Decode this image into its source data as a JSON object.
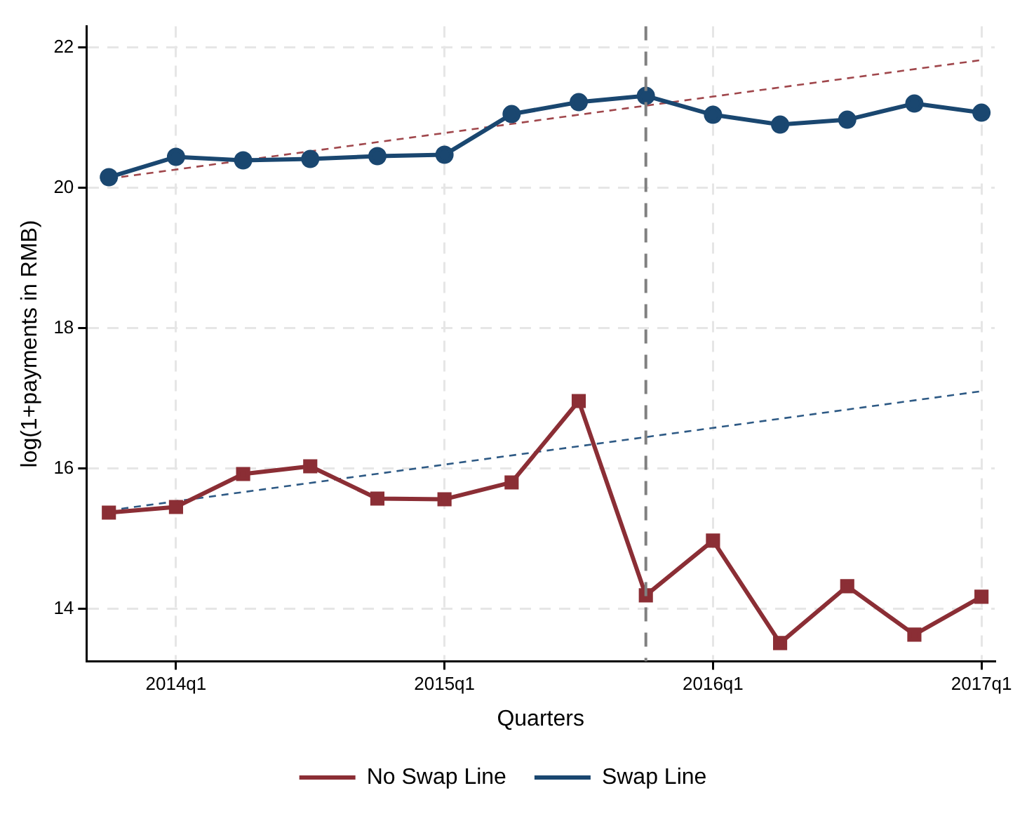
{
  "chart_data": {
    "type": "line",
    "xlabel": "Quarters",
    "ylabel": "log(1+payments in RMB)",
    "xlim": [
      "2013-09-01",
      "2017-01-19"
    ],
    "xticks": [
      {
        "value": "2014-01",
        "label": "2014q1"
      },
      {
        "value": "2015-01",
        "label": "2015q1"
      },
      {
        "value": "2016-01",
        "label": "2016q1"
      },
      {
        "value": "2017-01",
        "label": "2017q1"
      }
    ],
    "ylim": [
      13.25,
      22.3
    ],
    "yticks": [
      14,
      16,
      18,
      20,
      22
    ],
    "grid": true,
    "legend": "bottom",
    "x": [
      "2013-10",
      "2014-01",
      "2014-04",
      "2014-07",
      "2014-10",
      "2015-01",
      "2015-04",
      "2015-07",
      "2015-10",
      "2016-01",
      "2016-04",
      "2016-07",
      "2016-10",
      "2017-01"
    ],
    "series": [
      {
        "name": "No Swap Line",
        "color": "#8b2e35",
        "marker": "square",
        "line_style": "solid",
        "values": [
          15.37,
          15.45,
          15.92,
          16.03,
          15.57,
          15.56,
          15.8,
          16.96,
          14.19,
          14.97,
          13.51,
          14.32,
          13.63,
          14.17
        ]
      },
      {
        "name": "Swap Line",
        "color": "#1a4770",
        "marker": "circle",
        "line_style": "solid",
        "values": [
          20.15,
          20.44,
          20.39,
          20.41,
          20.45,
          20.47,
          21.05,
          21.22,
          21.31,
          21.04,
          20.9,
          20.97,
          21.2,
          21.07
        ]
      },
      {
        "type": "line",
        "color": "#a0474c",
        "marker": "none",
        "line_style": "dashed",
        "x": [
          "2013-10",
          "2017-01"
        ],
        "values": [
          20.13,
          21.82
        ]
      },
      {
        "type": "line",
        "color": "#2e5a85",
        "marker": "none",
        "line_style": "dashed",
        "x": [
          "2013-10",
          "2017-01"
        ],
        "values": [
          15.4,
          17.1
        ]
      }
    ],
    "ref_lines": [
      {
        "axis": "x",
        "value": "2015-10",
        "color": "#808080",
        "line_style": "dashed"
      }
    ]
  }
}
